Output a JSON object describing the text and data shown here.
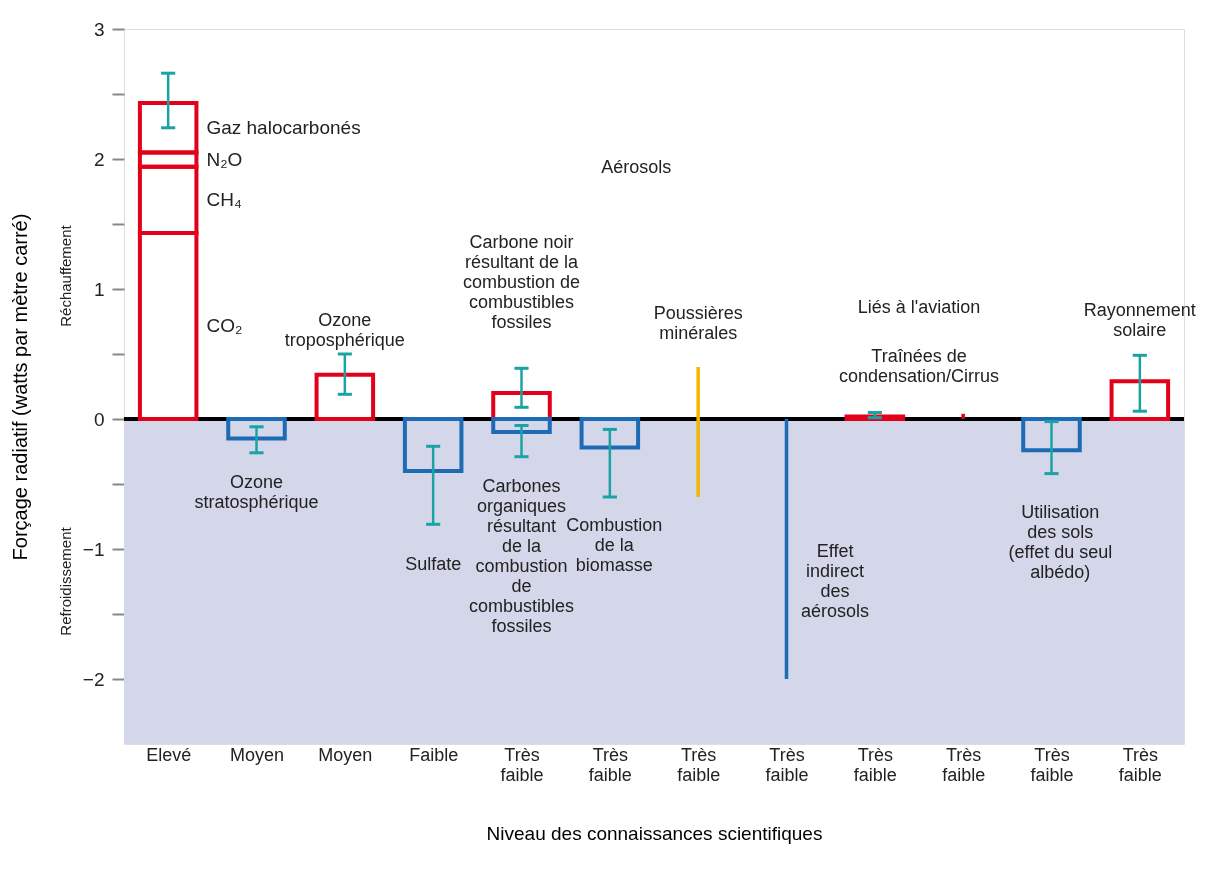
{
  "chart_data": {
    "type": "bar",
    "xlabel": "Niveau des connaissances scientifiques",
    "ylabel": "Forçage radiatif  (watts par mètre carré)",
    "categories": [
      "Elevé",
      "Moyen",
      "Moyen",
      "Faible",
      "Très faible",
      "Très faible",
      "Très faible",
      "Très faible",
      "Très faible",
      "Très faible",
      "Très faible",
      "Très faible"
    ],
    "stacked": true,
    "ylim": [
      -2.5,
      3
    ],
    "yticks": [
      {
        "value": -2,
        "label": "−2"
      },
      {
        "value": -1.5,
        "label": null
      },
      {
        "value": -1,
        "label": "−1"
      },
      {
        "value": -0.5,
        "label": null
      },
      0,
      {
        "value": 0.5,
        "label": null
      },
      1,
      {
        "value": 1.5,
        "label": null
      },
      2,
      {
        "value": 2.5,
        "label": null
      },
      3
    ],
    "grid": false,
    "legend": false,
    "bands": [
      {
        "axis": "y",
        "from": -2.5,
        "to": 0,
        "color": "#d4d6ea"
      }
    ],
    "ref_lines": [
      {
        "axis": "y",
        "value": 0,
        "color": "#000000"
      }
    ],
    "series": [
      {
        "name": "CO₂",
        "color": "#e2001a",
        "values": [
          1.43,
          null,
          null,
          null,
          null,
          null,
          null,
          null,
          null,
          null,
          null,
          null
        ]
      },
      {
        "name": "CH₄",
        "color": "#e2001a",
        "values": [
          0.51,
          null,
          null,
          null,
          null,
          null,
          null,
          null,
          null,
          null,
          null,
          null
        ]
      },
      {
        "name": "N₂O",
        "color": "#e2001a",
        "values": [
          0.11,
          null,
          null,
          null,
          null,
          null,
          null,
          null,
          null,
          null,
          null,
          null
        ]
      },
      {
        "name": "Gaz halocarbonés",
        "color": "#e2001a",
        "values": [
          0.38,
          null,
          null,
          null,
          null,
          null,
          null,
          null,
          null,
          null,
          null,
          null
        ],
        "errors": [
          [
            2.24,
            2.66
          ],
          null,
          null,
          null,
          null,
          null,
          null,
          null,
          null,
          null,
          null,
          null
        ]
      },
      {
        "color": "#e2001a",
        "values": [
          null,
          null,
          0.34,
          null,
          0.2,
          null,
          null,
          null,
          0.02,
          null,
          null,
          0.29
        ],
        "errors": [
          null,
          null,
          [
            0.19,
            0.5
          ],
          null,
          [
            0.09,
            0.39
          ],
          null,
          null,
          null,
          [
            0.01,
            0.05
          ],
          null,
          null,
          [
            0.06,
            0.49
          ]
        ]
      },
      {
        "color": "#1d6bb5",
        "values": [
          null,
          -0.15,
          null,
          -0.4,
          -0.1,
          -0.22,
          null,
          null,
          null,
          null,
          -0.24,
          null
        ],
        "errors": [
          null,
          [
            -0.26,
            -0.06
          ],
          null,
          [
            -0.81,
            -0.21
          ],
          [
            -0.29,
            -0.05
          ],
          [
            -0.6,
            -0.08
          ],
          null,
          null,
          null,
          null,
          [
            -0.42,
            -0.02
          ],
          null
        ]
      },
      {
        "type": "bar",
        "values": [
          null,
          null,
          null,
          null,
          null,
          null,
          1.0,
          -2.0,
          null,
          0.04,
          null,
          null
        ],
        "base": [
          null,
          null,
          null,
          null,
          null,
          null,
          -0.6,
          0,
          null,
          0,
          null,
          null
        ],
        "colors": [
          null,
          null,
          null,
          null,
          null,
          null,
          "#f2b800",
          "#1d6bb5",
          null,
          "#e2001a",
          null,
          null
        ]
      }
    ],
    "annotations": [
      "Réchauffement",
      "Refroidissement",
      "Ozone\ntroposphérique",
      "Ozone\nstratosphérique",
      "Aérosols",
      "Carbone noir\nrésultant de la\ncombustion de\ncombustibles\nfossiles",
      "Carbones\norganiques\nrésultant\nde la\ncombustion\nde\ncombustibles\nfossiles",
      "Sulfate",
      "Combustion\nde la\nbiomasse",
      "Poussières\nminérales",
      "Effet\nindirect\ndes\naérosols",
      "Liés à l'aviation",
      "Traînées de\ncondensation/Cirrus",
      "Utilisation\ndes sols\n(effet du seul\nalbédo)",
      "Rayonnement\nsolaire"
    ]
  }
}
